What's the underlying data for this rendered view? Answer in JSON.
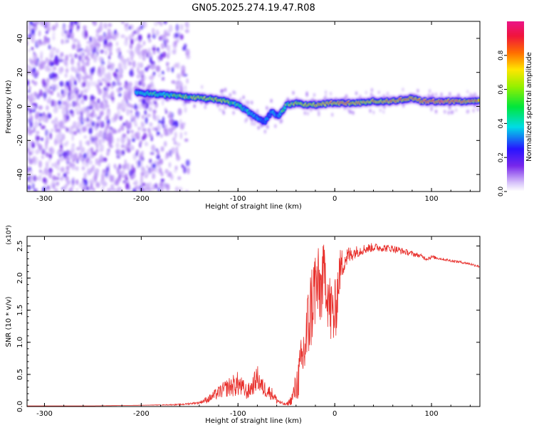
{
  "title": "GN05.2025.274.19.47.R08",
  "chart_data": [
    {
      "type": "heatmap",
      "xlabel": "Height of straight line (km)",
      "ylabel": "Frequency (Hz)",
      "xlim": [
        -318,
        150
      ],
      "ylim": [
        -50,
        50
      ],
      "xticks": [
        -300,
        -200,
        -100,
        0,
        100
      ],
      "yticks": [
        -40,
        -20,
        0,
        20,
        40
      ],
      "colorbar": {
        "label": "Normalized spectral amplitude",
        "range": [
          0.0,
          1.0
        ],
        "ticks": [
          0.0,
          0.2,
          0.4,
          0.6,
          0.8
        ]
      },
      "ridge": {
        "description": "dominant spectral ridge (frequency vs height)",
        "x": [
          -205,
          -180,
          -160,
          -140,
          -120,
          -100,
          -85,
          -72,
          -65,
          -58,
          -50,
          -40,
          -30,
          -20,
          0,
          20,
          40,
          60,
          80,
          90,
          100,
          120,
          150
        ],
        "frequency": [
          8,
          7,
          6,
          5,
          4,
          1,
          -5,
          -9,
          -3,
          -6,
          1,
          2,
          1,
          1,
          2,
          2,
          3,
          3,
          5,
          3,
          3,
          3,
          3
        ],
        "amplitude": [
          0.55,
          0.6,
          0.65,
          0.75,
          0.8,
          0.6,
          0.5,
          0.45,
          0.5,
          0.45,
          0.7,
          0.75,
          0.8,
          0.85,
          0.9,
          0.85,
          0.8,
          0.9,
          0.95,
          0.9,
          0.95,
          0.95,
          0.9
        ]
      }
    },
    {
      "type": "line",
      "xlabel": "Height of straight line (km)",
      "ylabel": "SNR (10 * v/v)",
      "y_multiplier": "(x10⁴)",
      "xlim": [
        -318,
        150
      ],
      "ylim": [
        0,
        2.65
      ],
      "xticks": [
        -300,
        -200,
        -100,
        0,
        100
      ],
      "yticks": [
        0.0,
        0.5,
        1.0,
        1.5,
        2.0,
        2.5
      ],
      "series": [
        {
          "name": "SNR",
          "color": "#e8302c",
          "x": [
            -318,
            -300,
            -250,
            -200,
            -160,
            -140,
            -130,
            -120,
            -110,
            -100,
            -95,
            -90,
            -85,
            -80,
            -75,
            -70,
            -65,
            -60,
            -55,
            -50,
            -45,
            -40,
            -35,
            -30,
            -25,
            -20,
            -15,
            -10,
            -5,
            0,
            5,
            10,
            20,
            30,
            40,
            50,
            60,
            70,
            80,
            90,
            95,
            100,
            110,
            120,
            130,
            140,
            150
          ],
          "values": [
            0.01,
            0.01,
            0.01,
            0.02,
            0.03,
            0.06,
            0.12,
            0.22,
            0.3,
            0.35,
            0.28,
            0.22,
            0.32,
            0.45,
            0.3,
            0.25,
            0.2,
            0.1,
            0.05,
            0.03,
            0.1,
            0.3,
            0.6,
            1.0,
            1.5,
            1.9,
            1.8,
            2.1,
            1.5,
            1.4,
            2.1,
            2.3,
            2.4,
            2.45,
            2.48,
            2.47,
            2.46,
            2.42,
            2.38,
            2.34,
            2.3,
            2.33,
            2.3,
            2.27,
            2.25,
            2.22,
            2.18
          ],
          "noise_amplitude": [
            0,
            0,
            0,
            0,
            0.01,
            0.02,
            0.06,
            0.1,
            0.15,
            0.2,
            0.15,
            0.12,
            0.15,
            0.2,
            0.15,
            0.12,
            0.1,
            0.06,
            0.03,
            0.02,
            0.08,
            0.25,
            0.45,
            0.6,
            0.7,
            0.7,
            0.6,
            0.5,
            0.6,
            0.55,
            0.35,
            0.2,
            0.1,
            0.08,
            0.07,
            0.06,
            0.06,
            0.05,
            0.04,
            0.03,
            0.03,
            0.03,
            0.02,
            0.02,
            0.02,
            0.02,
            0.02
          ]
        }
      ]
    }
  ]
}
